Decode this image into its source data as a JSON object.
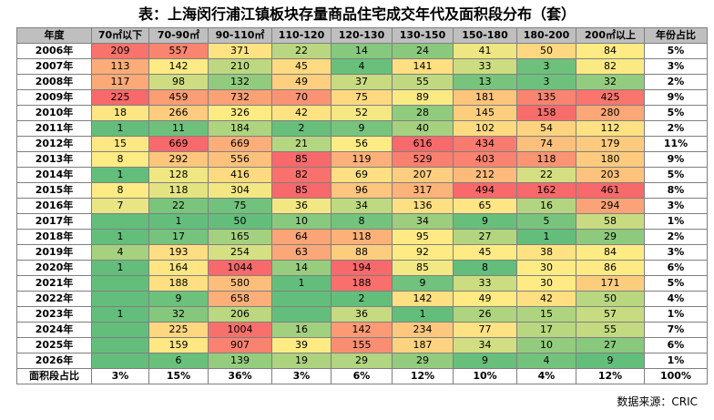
{
  "title": "表：上海闵行浦江镇板块存量商品住宅成交年代及面积段分布（套）",
  "table": {
    "header": [
      "年度",
      "70㎡以下",
      "70-90㎡",
      "90-110㎡",
      "110-120",
      "120-130",
      "130-150",
      "150-180",
      "180-200",
      "200㎡以上",
      "年份占比"
    ],
    "rows": [
      [
        "2006年",
        209,
        557,
        371,
        22,
        14,
        24,
        41,
        50,
        84,
        "5%"
      ],
      [
        "2007年",
        113,
        142,
        210,
        45,
        4,
        141,
        33,
        3,
        82,
        "3%"
      ],
      [
        "2008年",
        117,
        98,
        132,
        49,
        37,
        55,
        13,
        3,
        32,
        "2%"
      ],
      [
        "2009年",
        225,
        459,
        732,
        70,
        75,
        89,
        181,
        135,
        425,
        "9%"
      ],
      [
        "2010年",
        18,
        266,
        326,
        42,
        52,
        28,
        145,
        158,
        280,
        "5%"
      ],
      [
        "2011年",
        1,
        11,
        184,
        2,
        9,
        40,
        102,
        54,
        112,
        "2%"
      ],
      [
        "2012年",
        15,
        669,
        669,
        21,
        56,
        616,
        434,
        74,
        179,
        "11%"
      ],
      [
        "2013年",
        8,
        292,
        556,
        85,
        119,
        529,
        403,
        118,
        180,
        "9%"
      ],
      [
        "2014年",
        1,
        128,
        416,
        82,
        69,
        207,
        212,
        22,
        203,
        "5%"
      ],
      [
        "2015年",
        8,
        118,
        304,
        85,
        96,
        317,
        494,
        162,
        461,
        "8%"
      ],
      [
        "2016年",
        7,
        22,
        75,
        36,
        34,
        136,
        65,
        16,
        294,
        "3%"
      ],
      [
        "2017年",
        null,
        1,
        50,
        10,
        8,
        34,
        9,
        5,
        58,
        "1%"
      ],
      [
        "2018年",
        1,
        17,
        165,
        64,
        118,
        95,
        27,
        1,
        29,
        "2%"
      ],
      [
        "2019年",
        4,
        193,
        254,
        63,
        88,
        92,
        45,
        38,
        84,
        "3%"
      ],
      [
        "2020年",
        1,
        164,
        1044,
        14,
        194,
        85,
        8,
        30,
        86,
        "6%"
      ],
      [
        "2021年",
        null,
        188,
        580,
        1,
        188,
        9,
        33,
        30,
        171,
        "5%"
      ],
      [
        "2022年",
        null,
        9,
        658,
        null,
        2,
        142,
        49,
        42,
        50,
        "4%"
      ],
      [
        "2023年",
        1,
        32,
        206,
        null,
        36,
        1,
        26,
        15,
        57,
        "1%"
      ],
      [
        "2024年",
        null,
        225,
        1004,
        16,
        142,
        234,
        77,
        17,
        55,
        "7%"
      ],
      [
        "2025年",
        null,
        159,
        907,
        39,
        155,
        187,
        34,
        10,
        27,
        "6%"
      ],
      [
        "2026年",
        null,
        6,
        139,
        19,
        29,
        29,
        9,
        4,
        9,
        "1%"
      ]
    ],
    "footer": [
      "面积段占比",
      "3%",
      "15%",
      "36%",
      "3%",
      "6%",
      "12%",
      "10%",
      "4%",
      "12%",
      "100%"
    ]
  },
  "source": "数据来源：CRIC"
}
